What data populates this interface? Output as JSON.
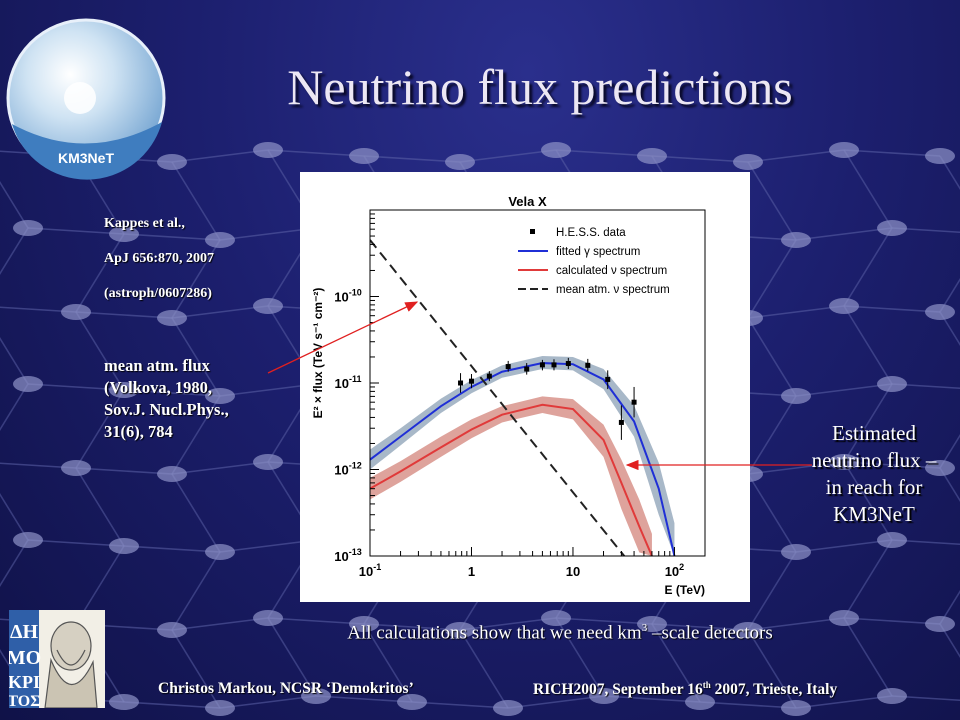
{
  "slide": {
    "title": "Neutrino flux predictions",
    "logo_text": "KM3NeT",
    "reference": {
      "line1": "Kappes et al.,",
      "line2": "ApJ 656:870, 2007",
      "line3": "(astroph/0607286)"
    },
    "atm_note": {
      "line1": "mean atm. flux",
      "line2": "(Volkova, 1980,",
      "line3": "Sov.J. Nucl.Phys.,",
      "line4": "31(6),  784"
    },
    "estimate_note": {
      "line1": "Estimated",
      "line2": "neutrino flux –",
      "line3": "in reach for",
      "line4": "KM3NeT"
    },
    "bottom": {
      "pre": "All calculations show that we need km",
      "sup": "3",
      "post": " –scale detectors"
    },
    "footer": {
      "left": "Christos Markou, NCSR ‘Demokritos’",
      "right_pre": "RICH2007, September 16",
      "right_sup": "th",
      "right_post": " 2007, Trieste, Italy"
    },
    "demokritos_logo_text": "ΔΗΜΟΚΡΙΤΟΣ"
  },
  "chart_data": {
    "type": "line",
    "title": "Vela X",
    "xlabel": "E (TeV)",
    "ylabel": "E² × flux (TeV s⁻¹ cm⁻²)",
    "x_scale": "log",
    "y_scale": "log",
    "xlim": [
      0.1,
      200
    ],
    "ylim": [
      1e-13,
      1e-09
    ],
    "x_ticks": [
      {
        "value": 0.1,
        "base": "10",
        "exp": "-1"
      },
      {
        "value": 1,
        "base": "1",
        "exp": ""
      },
      {
        "value": 10,
        "base": "10",
        "exp": ""
      },
      {
        "value": 100,
        "base": "10",
        "exp": "2"
      }
    ],
    "y_ticks": [
      {
        "value": 1e-13,
        "base": "10",
        "exp": "-13"
      },
      {
        "value": 1e-12,
        "base": "10",
        "exp": "-12"
      },
      {
        "value": 1e-11,
        "base": "10",
        "exp": "-11"
      },
      {
        "value": 1e-10,
        "base": "10",
        "exp": "-10"
      }
    ],
    "legend_position": "top-right",
    "colors": {
      "data": "#000000",
      "gamma": "#1f2fd6",
      "nu": "#e03a3a",
      "atm": "#222222",
      "gamma_band": "#a8b8c8",
      "nu_band": "#dea39c"
    },
    "series": [
      {
        "name": "H.E.S.S. data",
        "kind": "points",
        "points": [
          {
            "x": 0.78,
            "y": 1e-11,
            "lo": 7.7e-12,
            "hi": 1.3e-11
          },
          {
            "x": 1.0,
            "y": 1.05e-11,
            "lo": 8.7e-12,
            "hi": 1.27e-11
          },
          {
            "x": 1.5,
            "y": 1.2e-11,
            "lo": 1.05e-11,
            "hi": 1.37e-11
          },
          {
            "x": 2.3,
            "y": 1.55e-11,
            "lo": 1.35e-11,
            "hi": 1.8e-11
          },
          {
            "x": 3.5,
            "y": 1.45e-11,
            "lo": 1.25e-11,
            "hi": 1.7e-11
          },
          {
            "x": 5.0,
            "y": 1.62e-11,
            "lo": 1.4e-11,
            "hi": 1.85e-11
          },
          {
            "x": 6.5,
            "y": 1.62e-11,
            "lo": 1.4e-11,
            "hi": 1.88e-11
          },
          {
            "x": 9.0,
            "y": 1.68e-11,
            "lo": 1.45e-11,
            "hi": 1.95e-11
          },
          {
            "x": 14.0,
            "y": 1.6e-11,
            "lo": 1.37e-11,
            "hi": 1.9e-11
          },
          {
            "x": 22.0,
            "y": 1.1e-11,
            "lo": 8.5e-12,
            "hi": 1.4e-11
          },
          {
            "x": 30.0,
            "y": 3.5e-12,
            "lo": 2.2e-12,
            "hi": 5.5e-12
          },
          {
            "x": 40.0,
            "y": 6e-12,
            "lo": 4e-12,
            "hi": 9e-12
          }
        ]
      },
      {
        "name": "fitted γ spectrum",
        "kind": "curve",
        "x": [
          0.1,
          0.2,
          0.5,
          1,
          2,
          5,
          10,
          20,
          40,
          70,
          100
        ],
        "y": [
          1.3e-12,
          2.4e-12,
          5.4e-12,
          9e-12,
          1.35e-11,
          1.7e-11,
          1.65e-11,
          1.1e-11,
          3.6e-12,
          6e-13,
          1e-13
        ],
        "band_lo": [
          1e-12,
          1.9e-12,
          4.5e-12,
          7.6e-12,
          1.15e-11,
          1.45e-11,
          1.4e-11,
          8.5e-12,
          2.4e-12,
          3e-13,
          1e-13
        ],
        "band_hi": [
          1.7e-12,
          3e-12,
          6.6e-12,
          1.08e-11,
          1.6e-11,
          2.05e-11,
          2e-11,
          1.45e-11,
          5.5e-12,
          1.2e-12,
          2.4e-13
        ]
      },
      {
        "name": "calculated ν spectrum",
        "kind": "curve",
        "x": [
          0.1,
          0.2,
          0.5,
          1,
          2,
          5,
          10,
          20,
          30,
          45,
          60
        ],
        "y": [
          6e-13,
          9.5e-13,
          1.8e-12,
          2.9e-12,
          4.3e-12,
          5.6e-12,
          5e-12,
          2.2e-12,
          7e-13,
          2.2e-13,
          1e-13
        ],
        "band_lo": [
          4.5e-13,
          7.2e-13,
          1.4e-12,
          2.3e-12,
          3.5e-12,
          4.5e-12,
          3.8e-12,
          1.4e-12,
          3.5e-13,
          1.1e-13,
          1e-13
        ],
        "band_hi": [
          8e-13,
          1.25e-12,
          2.4e-12,
          3.8e-12,
          5.4e-12,
          7e-12,
          6.5e-12,
          3.3e-12,
          1.3e-12,
          4.5e-13,
          1.8e-13
        ]
      },
      {
        "name": "mean atm. ν spectrum",
        "kind": "dashed",
        "x": [
          0.1,
          32
        ],
        "y": [
          4.5e-10,
          1e-13
        ]
      }
    ]
  }
}
